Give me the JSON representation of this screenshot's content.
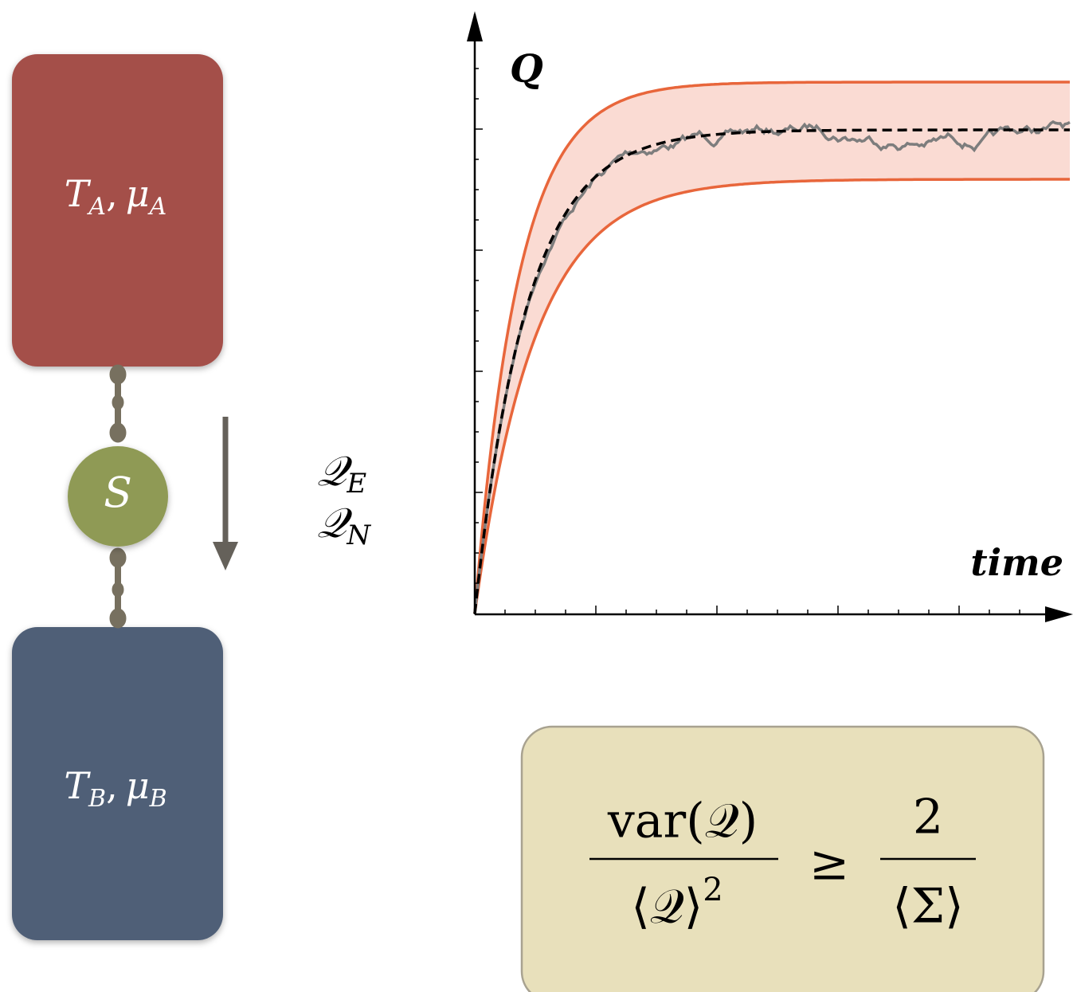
{
  "reservoir_a": {
    "temperature": "T",
    "temperature_subscript": "A",
    "separator": ",",
    "potential": "μ",
    "potential_subscript": "A"
  },
  "reservoir_b": {
    "temperature": "T",
    "temperature_subscript": "B",
    "separator": ",",
    "potential": "μ",
    "potential_subscript": "B"
  },
  "system": {
    "label": "S"
  },
  "currents": {
    "energy": {
      "symbol": "𝒬",
      "subscript": "E"
    },
    "particle": {
      "symbol": "𝒬",
      "subscript": "N"
    }
  },
  "plot": {
    "y_label": "Q",
    "x_label": "time"
  },
  "formula": {
    "left_numerator": "var(𝒬)",
    "left_denominator": "⟨𝒬⟩",
    "left_exponent": "2",
    "relation": "≥",
    "right_numerator": "2",
    "right_denominator": "⟨Σ⟩"
  }
}
